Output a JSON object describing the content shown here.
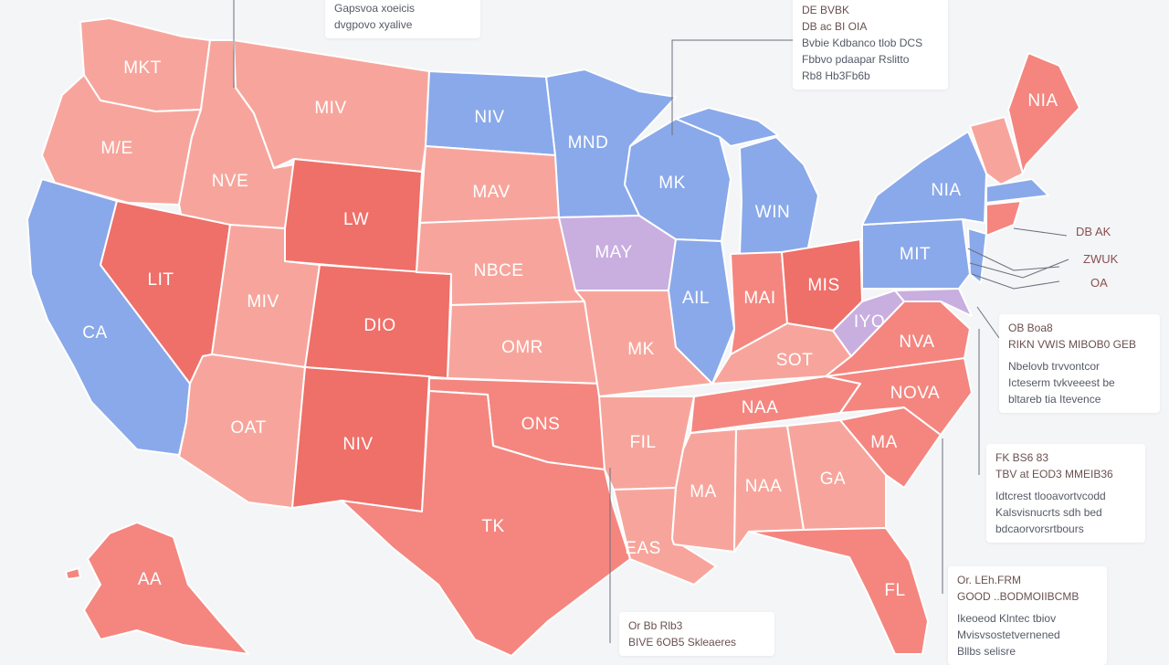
{
  "colors": {
    "republican": "#f4867f",
    "republican_light": "#f7a59c",
    "republican_dark": "#ef6f69",
    "democrat": "#8aa9ea",
    "swing": "#c9aee0",
    "border": "#ffffff",
    "background": "#f4f5f7"
  },
  "state_labels": {
    "mt_north": "MKT",
    "wa": "M/E",
    "id": "NVE",
    "mt": "MIV",
    "wy": "LW",
    "nd": "NIV",
    "sd": "MAV",
    "ne": "NBCE",
    "ks": "OMR",
    "ok": "ONS",
    "tx": "TK",
    "nm": "NIV",
    "az": "OAT",
    "ut": "MIV",
    "co": "DIO",
    "nv": "LIT",
    "ca": "CA",
    "mn": "MND",
    "ia": "MAY",
    "mo": "MK",
    "ar": "FIL",
    "la": "EAS",
    "ms": "MA",
    "al": "NAA",
    "ga": "GA",
    "fl": "FL",
    "sc": "MA",
    "nc": "NOVA",
    "tn": "NAA",
    "ky": "SOT",
    "wi": "MK",
    "mi": "WIN",
    "il": "AIL",
    "in": "MAI",
    "oh": "MIS",
    "wv": "IYO",
    "va": "NVA",
    "pa": "MIT",
    "ny": "NIA",
    "me": "NIA",
    "ak": "AA"
  },
  "small_labels": [
    "DB AK",
    "ZWUK",
    "OA"
  ],
  "callouts": [
    {
      "lines": [
        "Gapsvoa xoeicis",
        "dvgpovo xyalive"
      ]
    },
    {
      "lines": [
        "DE BVBK",
        "DB  ac  BI OIA",
        "Bvbie Kdbanco tlob DCS",
        "Fbbvo pdaapar Rslitto",
        "Rb8  Hb3Fb6b"
      ]
    },
    {
      "lines": [
        "OB Boa8",
        "RIKN  VWIS  MIBOB0 GEB",
        "Nbelovb trvvontcor",
        "Icteserm tvkveeest  be",
        "bltareb tia Itevence"
      ]
    },
    {
      "lines": [
        "FK  BS6 83",
        "TBV  at EOD3  MMEIB36",
        "Idtcrest tlooavortvcodd",
        "Kalsvisnucrts  sdh  bed",
        "bdcaorvorsrtbours"
      ]
    },
    {
      "lines": [
        "Or  Bb  Rlb3",
        "BIVE  6OB5  Skleaeres"
      ]
    },
    {
      "lines": [
        "Or. LEh.FRM",
        "GOOD  ..BODMOIIBCMB",
        "Ikeoeod  Klntec tbiov",
        "Mvisvsostetvernened",
        "Bllbs selisre"
      ]
    }
  ]
}
